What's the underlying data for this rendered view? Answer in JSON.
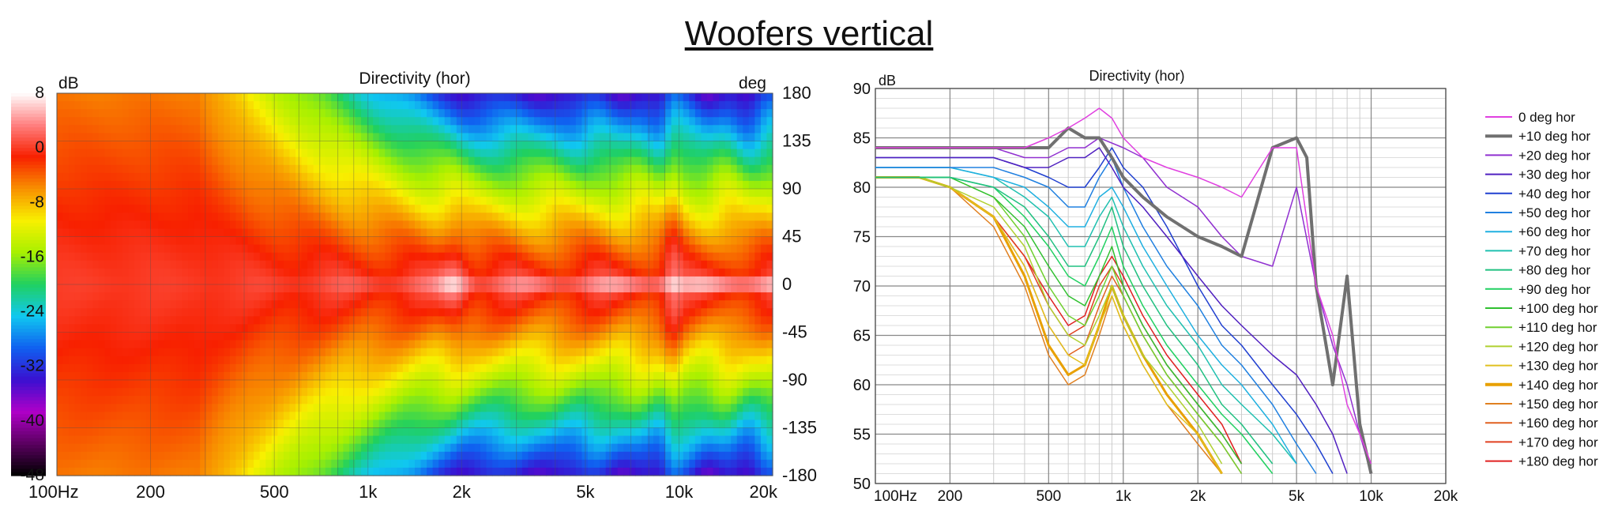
{
  "title": "Woofers vertical",
  "chart_data": [
    {
      "type": "heatmap",
      "title": "Directivity (hor)",
      "colorbar_unit": "dB",
      "yunit": "deg",
      "x_tick_labels": [
        "100Hz",
        "200",
        "500",
        "1k",
        "2k",
        "5k",
        "10k",
        "20k"
      ],
      "x_tick_values": [
        100,
        200,
        500,
        1000,
        2000,
        5000,
        10000,
        20000
      ],
      "y_tick_labels": [
        "180",
        "135",
        "90",
        "45",
        "0",
        "-45",
        "-90",
        "-135",
        "-180"
      ],
      "y_tick_values": [
        180,
        135,
        90,
        45,
        0,
        -45,
        -90,
        -135,
        -180
      ],
      "colorbar_labels": [
        "8",
        "0",
        "-8",
        "-16",
        "-24",
        "-32",
        "-40",
        "-48"
      ],
      "colorbar_values": [
        8,
        0,
        -8,
        -16,
        -24,
        -32,
        -40,
        -48
      ],
      "xlim": [
        100,
        20000
      ],
      "ylim": [
        -180,
        180
      ],
      "zlim": [
        -48,
        8
      ],
      "xscale": "log",
      "grid": true,
      "colorbar_colors": [
        "#000000",
        "#5a0060",
        "#b000c8",
        "#3a10d0",
        "#1060f0",
        "#10c8f0",
        "#20d060",
        "#a8f000",
        "#f8f000",
        "#f89000",
        "#f82000",
        "#ff8080",
        "#ffffff"
      ]
    },
    {
      "type": "line",
      "title": "Directivity (hor)",
      "ylabel": "dB",
      "xscale": "log",
      "xlim": [
        100,
        20000
      ],
      "ylim": [
        50,
        90
      ],
      "grid": true,
      "legend_position": "right",
      "x_tick_labels": [
        "100Hz",
        "200",
        "500",
        "1k",
        "2k",
        "5k",
        "10k",
        "20k"
      ],
      "x_tick_values": [
        100,
        200,
        500,
        1000,
        2000,
        5000,
        10000,
        20000
      ],
      "y_tick_values": [
        50,
        55,
        60,
        65,
        70,
        75,
        80,
        85,
        90
      ],
      "series": [
        {
          "name": "0 deg hor",
          "color": "#e040e0",
          "width": 1.5,
          "x": [
            100,
            150,
            200,
            300,
            400,
            500,
            600,
            700,
            800,
            900,
            1000,
            1200,
            1500,
            2000,
            2500,
            3000,
            4000,
            5000,
            6000,
            7000,
            8000,
            9000,
            10000
          ],
          "y": [
            84,
            84,
            84,
            84,
            84,
            85,
            86,
            87,
            88,
            87,
            85,
            83,
            82,
            81,
            80,
            79,
            84,
            84,
            70,
            65,
            58,
            55,
            52
          ]
        },
        {
          "name": "+10 deg hor",
          "color": "#707070",
          "width": 4,
          "x": [
            100,
            150,
            200,
            300,
            400,
            500,
            600,
            700,
            800,
            900,
            1000,
            1200,
            1500,
            2000,
            2500,
            3000,
            4000,
            5000,
            5500,
            6000,
            7000,
            8000,
            9000,
            10000
          ],
          "y": [
            84,
            84,
            84,
            84,
            84,
            84,
            86,
            85,
            85,
            83,
            81,
            79,
            77,
            75,
            74,
            73,
            84,
            85,
            83,
            70,
            60,
            71,
            56,
            51
          ]
        },
        {
          "name": "+20 deg hor",
          "color": "#9030d0",
          "width": 1.5,
          "x": [
            100,
            150,
            200,
            300,
            400,
            500,
            600,
            700,
            800,
            1000,
            1200,
            1500,
            2000,
            2500,
            3000,
            4000,
            5000,
            6000,
            7000,
            8000,
            9000,
            10000
          ],
          "y": [
            84,
            84,
            84,
            84,
            83,
            83,
            84,
            84,
            85,
            84,
            83,
            80,
            78,
            75,
            73,
            72,
            80,
            70,
            64,
            60,
            55,
            51
          ]
        },
        {
          "name": "+30 deg hor",
          "color": "#5020c0",
          "width": 1.5,
          "x": [
            100,
            150,
            200,
            300,
            400,
            500,
            600,
            700,
            800,
            900,
            1000,
            1200,
            1500,
            2000,
            2500,
            3000,
            4000,
            5000,
            6000,
            7000,
            8000
          ],
          "y": [
            83,
            83,
            83,
            83,
            82,
            82,
            83,
            83,
            84,
            82,
            80,
            78,
            75,
            71,
            68,
            66,
            63,
            61,
            58,
            55,
            51
          ]
        },
        {
          "name": "+40 deg hor",
          "color": "#2040d0",
          "width": 1.5,
          "x": [
            100,
            150,
            200,
            300,
            400,
            500,
            600,
            700,
            800,
            900,
            1000,
            1200,
            1500,
            2000,
            2500,
            3000,
            4000,
            5000,
            6000,
            7000
          ],
          "y": [
            83,
            83,
            83,
            83,
            82,
            81,
            80,
            80,
            82,
            84,
            82,
            80,
            76,
            70,
            66,
            64,
            60,
            57,
            54,
            51
          ]
        },
        {
          "name": "+50 deg hor",
          "color": "#2080e0",
          "width": 1.5,
          "x": [
            100,
            150,
            200,
            300,
            400,
            500,
            600,
            700,
            800,
            900,
            1000,
            1200,
            1500,
            2000,
            2500,
            3000,
            4000,
            5000,
            6000
          ],
          "y": [
            82,
            82,
            82,
            82,
            81,
            80,
            78,
            78,
            81,
            83,
            80,
            76,
            72,
            68,
            64,
            62,
            58,
            54,
            51
          ]
        },
        {
          "name": "+60 deg hor",
          "color": "#20b0e0",
          "width": 1.5,
          "x": [
            100,
            150,
            200,
            300,
            400,
            500,
            600,
            700,
            800,
            900,
            1000,
            1200,
            1500,
            2000,
            2500,
            3000,
            4000,
            5000
          ],
          "y": [
            82,
            82,
            82,
            81,
            80,
            78,
            76,
            76,
            79,
            80,
            78,
            74,
            70,
            65,
            62,
            60,
            56,
            52
          ]
        },
        {
          "name": "+70 deg hor",
          "color": "#20c0b0",
          "width": 1.5,
          "x": [
            100,
            150,
            200,
            300,
            400,
            500,
            600,
            700,
            800,
            900,
            1000,
            1200,
            1500,
            2000,
            2500,
            3000,
            4000,
            5000
          ],
          "y": [
            82,
            82,
            82,
            81,
            79,
            77,
            74,
            74,
            77,
            79,
            76,
            72,
            68,
            64,
            60,
            58,
            55,
            52
          ]
        },
        {
          "name": "+80 deg hor",
          "color": "#20c080",
          "width": 1.5,
          "x": [
            100,
            150,
            200,
            300,
            400,
            500,
            600,
            700,
            800,
            900,
            1000,
            1200,
            1500,
            2000,
            2500,
            3000,
            4000
          ],
          "y": [
            81,
            81,
            81,
            80,
            78,
            75,
            72,
            72,
            75,
            78,
            74,
            70,
            66,
            62,
            58,
            56,
            52
          ]
        },
        {
          "name": "+90 deg hor",
          "color": "#20d060",
          "width": 1.5,
          "x": [
            100,
            150,
            200,
            300,
            400,
            500,
            600,
            700,
            800,
            900,
            1000,
            1200,
            1500,
            2000,
            2500,
            3000,
            4000
          ],
          "y": [
            81,
            81,
            81,
            80,
            77,
            74,
            71,
            70,
            73,
            76,
            72,
            68,
            64,
            60,
            57,
            55,
            51
          ]
        },
        {
          "name": "+100 deg hor",
          "color": "#30c030",
          "width": 1.5,
          "x": [
            100,
            150,
            200,
            300,
            400,
            500,
            600,
            700,
            800,
            900,
            1000,
            1200,
            1500,
            2000,
            2500,
            3000
          ],
          "y": [
            81,
            81,
            81,
            79,
            76,
            72,
            69,
            68,
            71,
            74,
            70,
            66,
            62,
            58,
            55,
            52
          ]
        },
        {
          "name": "+110 deg hor",
          "color": "#70d030",
          "width": 1.5,
          "x": [
            100,
            150,
            200,
            300,
            400,
            500,
            600,
            700,
            800,
            900,
            1000,
            1200,
            1500,
            2000,
            2500,
            3000
          ],
          "y": [
            81,
            81,
            81,
            79,
            75,
            70,
            67,
            66,
            69,
            72,
            69,
            65,
            61,
            57,
            54,
            51
          ]
        },
        {
          "name": "+120 deg hor",
          "color": "#b0d030",
          "width": 1.5,
          "x": [
            100,
            150,
            200,
            300,
            400,
            500,
            600,
            700,
            800,
            900,
            1000,
            1200,
            1500,
            2000,
            2500
          ],
          "y": [
            81,
            81,
            80,
            78,
            74,
            68,
            65,
            64,
            67,
            70,
            67,
            63,
            60,
            56,
            52
          ]
        },
        {
          "name": "+130 deg hor",
          "color": "#e0c020",
          "width": 1.5,
          "x": [
            100,
            150,
            200,
            300,
            400,
            500,
            600,
            700,
            800,
            900,
            1000,
            1200,
            1500,
            2000,
            2500
          ],
          "y": [
            81,
            81,
            80,
            77,
            72,
            66,
            63,
            62,
            66,
            69,
            66,
            62,
            58,
            55,
            51
          ]
        },
        {
          "name": "+140 deg hor",
          "color": "#e8a000",
          "width": 3,
          "x": [
            100,
            150,
            200,
            300,
            400,
            500,
            600,
            700,
            800,
            900,
            1000,
            1200,
            1500,
            2000,
            2500
          ],
          "y": [
            81,
            81,
            80,
            77,
            71,
            64,
            61,
            62,
            66,
            70,
            67,
            63,
            59,
            55,
            51
          ]
        },
        {
          "name": "+150 deg hor",
          "color": "#e08020",
          "width": 1.5,
          "x": [
            100,
            150,
            200,
            300,
            400,
            500,
            600,
            700,
            800,
            900,
            1000,
            1200,
            1500,
            2000,
            2500
          ],
          "y": [
            81,
            81,
            80,
            76,
            70,
            63,
            60,
            61,
            65,
            69,
            66,
            62,
            58,
            54,
            51
          ]
        },
        {
          "name": "+160 deg hor",
          "color": "#e06020",
          "width": 1.5,
          "x": [
            100,
            150,
            200,
            300,
            400,
            500,
            600,
            700,
            800,
            900,
            1000,
            1200,
            1500,
            2000,
            2500,
            3000
          ],
          "y": [
            81,
            81,
            80,
            77,
            72,
            66,
            63,
            64,
            68,
            71,
            69,
            65,
            61,
            57,
            54,
            51
          ]
        },
        {
          "name": "+170 deg hor",
          "color": "#e04020",
          "width": 1.5,
          "x": [
            100,
            150,
            200,
            300,
            400,
            500,
            600,
            700,
            800,
            900,
            1000,
            1200,
            1500,
            2000,
            2500,
            3000
          ],
          "y": [
            81,
            81,
            80,
            77,
            73,
            68,
            65,
            66,
            70,
            72,
            70,
            66,
            62,
            58,
            55,
            52
          ]
        },
        {
          "name": "+180 deg hor",
          "color": "#e02020",
          "width": 1.5,
          "x": [
            100,
            150,
            200,
            300,
            400,
            500,
            600,
            700,
            800,
            900,
            1000,
            1200,
            1500,
            2000,
            2500,
            3000
          ],
          "y": [
            81,
            81,
            80,
            77,
            73,
            69,
            66,
            67,
            71,
            73,
            71,
            67,
            63,
            59,
            56,
            52
          ]
        }
      ]
    }
  ]
}
